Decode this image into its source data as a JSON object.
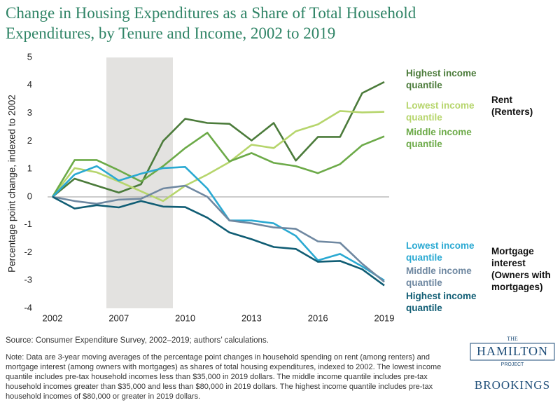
{
  "chart_data": {
    "type": "line",
    "title": "Change in Housing Expenditures as a Share of Total Household Expenditures, by Tenure and Income, 2002 to 2019",
    "y_label": "Percentage point change, indexed to 2002",
    "categories": [
      "2002",
      null,
      null,
      "2007",
      null,
      null,
      "2010",
      null,
      null,
      "2013",
      null,
      null,
      "2016",
      null,
      null,
      "2019"
    ],
    "series": [
      {
        "name": "Highest income quantile",
        "color": "#4b7b3a",
        "values": [
          0,
          0.65,
          0.4,
          0.15,
          0.45,
          2.0,
          2.8,
          2.65,
          2.62,
          2.02,
          2.65,
          1.3,
          2.15,
          2.15,
          3.72,
          4.12
        ]
      },
      {
        "name": "Lowest income quantile",
        "color": "#b6d56c",
        "values": [
          0,
          1.03,
          0.88,
          0.55,
          0.2,
          -0.15,
          0.4,
          0.8,
          1.25,
          1.87,
          1.75,
          2.35,
          2.6,
          3.08,
          3.03,
          3.05
        ]
      },
      {
        "name": "Middle income quantile",
        "color": "#6caa48",
        "values": [
          0,
          1.32,
          1.32,
          0.95,
          0.55,
          1.1,
          1.75,
          2.3,
          1.27,
          1.57,
          1.22,
          1.1,
          0.85,
          1.17,
          1.85,
          2.17
        ]
      },
      {
        "name": "Lowest income quantile",
        "color": "#2aa9d2",
        "values": [
          0,
          0.8,
          1.1,
          0.58,
          0.83,
          1.03,
          1.07,
          0.3,
          -0.85,
          -0.85,
          -0.95,
          -1.4,
          -2.28,
          -2.05,
          -2.5,
          -3.0
        ]
      },
      {
        "name": "Middle income quantile",
        "color": "#6f88a1",
        "values": [
          0,
          -0.15,
          -0.25,
          -0.1,
          -0.07,
          0.3,
          0.4,
          0.0,
          -0.85,
          -0.95,
          -1.1,
          -1.15,
          -1.6,
          -1.65,
          -2.4,
          -3.05
        ]
      },
      {
        "name": "Highest income quantile",
        "color": "#105d74",
        "values": [
          0,
          -0.42,
          -0.3,
          -0.38,
          -0.15,
          -0.35,
          -0.37,
          -0.75,
          -1.28,
          -1.52,
          -1.8,
          -1.87,
          -2.33,
          -2.3,
          -2.6,
          -3.18
        ]
      }
    ],
    "annotations": [
      "Rent (Renters)",
      "Mortgage interest (Owners with mortgages)"
    ],
    "ylim": [
      -4,
      5
    ],
    "yticks": [
      -4,
      -3,
      -2,
      -1,
      0,
      1,
      2,
      3,
      4,
      5
    ],
    "grid": false,
    "source": "Source:  Consumer Expenditure Survey, 2002–2019; authors’ calculations.",
    "note": "Note: Data are 3-year moving averages of the percentage point changes in household spending on rent (among renters) and mortgage interest (among owners with mortgages) as shares of total housing expenditures, indexed to 2002. The lowest income quantile includes pre-tax household incomes less than $35,000 in 2019 dollars. The middle income quantile includes pre-tax household incomes greater than $35,000 and less than $80,000 in 2019 dollars. The highest income quantile includes pre-tax household incomes of $80,000 or greater in 2019 dollars."
  },
  "logo": {
    "the": "THE",
    "name": "HAMILTON",
    "project": "PROJECT",
    "org": "BROOKINGS"
  }
}
